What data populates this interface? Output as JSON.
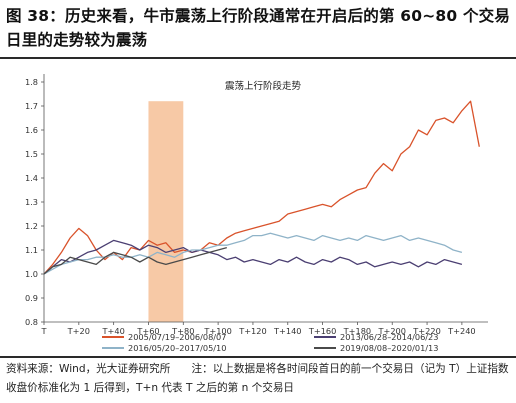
{
  "figure": {
    "title": "图 38：历史来看，牛市震荡上行阶段通常在开启后的第 60~80 个交易日里的走势较为震荡",
    "source": "资料来源：Wind，光大证券研究所",
    "note": "注：以上数据是将各时间段首日的前一个交易日（记为 T）上证指数收盘价标准化为 1 后得到，T+n 代表 T 之后的第 n 个交易日"
  },
  "chart_data": {
    "type": "line",
    "title": "震荡上行阶段走势",
    "xlabel": "",
    "ylabel": "",
    "x_ticks": [
      "T",
      "T+20",
      "T+40",
      "T+60",
      "T+80",
      "T+100",
      "T+120",
      "T+140",
      "T+160",
      "T+180",
      "T+200",
      "T+220",
      "T+240"
    ],
    "xlim": [
      0,
      255
    ],
    "ylim": [
      0.8,
      1.8
    ],
    "y_ticks": [
      0.8,
      0.9,
      1.0,
      1.1,
      1.2,
      1.3,
      1.4,
      1.5,
      1.6,
      1.7,
      1.8
    ],
    "grid": false,
    "legend_position": "bottom",
    "shaded_range": {
      "x_start": 60,
      "x_end": 80,
      "color": "#f7c9a6"
    },
    "series": [
      {
        "name": "2005/07/19–2006/08/07",
        "color": "#d9532b",
        "x": [
          0,
          5,
          10,
          15,
          20,
          25,
          30,
          35,
          40,
          45,
          50,
          55,
          60,
          65,
          70,
          75,
          80,
          85,
          90,
          95,
          100,
          105,
          110,
          115,
          120,
          125,
          130,
          135,
          140,
          145,
          150,
          155,
          160,
          165,
          170,
          175,
          180,
          185,
          190,
          195,
          200,
          205,
          210,
          215,
          220,
          225,
          230,
          235,
          240,
          245,
          250
        ],
        "y": [
          1.0,
          1.04,
          1.09,
          1.15,
          1.19,
          1.16,
          1.1,
          1.06,
          1.09,
          1.06,
          1.11,
          1.1,
          1.14,
          1.12,
          1.13,
          1.09,
          1.1,
          1.09,
          1.1,
          1.13,
          1.12,
          1.15,
          1.17,
          1.18,
          1.19,
          1.2,
          1.21,
          1.22,
          1.25,
          1.26,
          1.27,
          1.28,
          1.29,
          1.28,
          1.31,
          1.33,
          1.35,
          1.36,
          1.42,
          1.46,
          1.43,
          1.5,
          1.53,
          1.6,
          1.58,
          1.64,
          1.65,
          1.63,
          1.68,
          1.72,
          1.53
        ]
      },
      {
        "name": "2013/06/28–2014/06/23",
        "color": "#4b3f72",
        "x": [
          0,
          5,
          10,
          15,
          20,
          25,
          30,
          35,
          40,
          45,
          50,
          55,
          60,
          65,
          70,
          75,
          80,
          85,
          90,
          95,
          100,
          105,
          110,
          115,
          120,
          125,
          130,
          135,
          140,
          145,
          150,
          155,
          160,
          165,
          170,
          175,
          180,
          185,
          190,
          195,
          200,
          205,
          210,
          215,
          220,
          225,
          230,
          235,
          240
        ],
        "y": [
          1.0,
          1.03,
          1.06,
          1.05,
          1.07,
          1.09,
          1.1,
          1.12,
          1.14,
          1.13,
          1.12,
          1.1,
          1.12,
          1.11,
          1.09,
          1.1,
          1.11,
          1.09,
          1.1,
          1.09,
          1.08,
          1.06,
          1.07,
          1.05,
          1.06,
          1.05,
          1.04,
          1.06,
          1.05,
          1.07,
          1.05,
          1.04,
          1.06,
          1.05,
          1.07,
          1.06,
          1.04,
          1.05,
          1.03,
          1.04,
          1.05,
          1.04,
          1.05,
          1.03,
          1.05,
          1.04,
          1.06,
          1.05,
          1.04
        ]
      },
      {
        "name": "2016/05/20–2017/05/10",
        "color": "#8fb3c8",
        "x": [
          0,
          5,
          10,
          15,
          20,
          25,
          30,
          35,
          40,
          45,
          50,
          55,
          60,
          65,
          70,
          75,
          80,
          85,
          90,
          95,
          100,
          105,
          110,
          115,
          120,
          125,
          130,
          135,
          140,
          145,
          150,
          155,
          160,
          165,
          170,
          175,
          180,
          185,
          190,
          195,
          200,
          205,
          210,
          215,
          220,
          225,
          230,
          235,
          240
        ],
        "y": [
          1.0,
          1.02,
          1.04,
          1.05,
          1.06,
          1.06,
          1.07,
          1.07,
          1.08,
          1.07,
          1.07,
          1.08,
          1.07,
          1.09,
          1.08,
          1.07,
          1.09,
          1.1,
          1.1,
          1.11,
          1.12,
          1.12,
          1.13,
          1.14,
          1.16,
          1.16,
          1.17,
          1.16,
          1.15,
          1.16,
          1.15,
          1.14,
          1.16,
          1.15,
          1.14,
          1.15,
          1.14,
          1.16,
          1.15,
          1.14,
          1.15,
          1.16,
          1.14,
          1.15,
          1.14,
          1.13,
          1.12,
          1.1,
          1.09
        ]
      },
      {
        "name": "2019/08/08–2020/01/13",
        "color": "#4a4a4a",
        "x": [
          0,
          5,
          10,
          15,
          20,
          25,
          30,
          35,
          40,
          45,
          50,
          55,
          60,
          65,
          70,
          75,
          80,
          85,
          90,
          95,
          100,
          105
        ],
        "y": [
          1.0,
          1.03,
          1.04,
          1.07,
          1.06,
          1.05,
          1.04,
          1.07,
          1.09,
          1.08,
          1.07,
          1.05,
          1.07,
          1.05,
          1.04,
          1.05,
          1.06,
          1.07,
          1.08,
          1.09,
          1.1,
          1.11
        ]
      }
    ]
  }
}
